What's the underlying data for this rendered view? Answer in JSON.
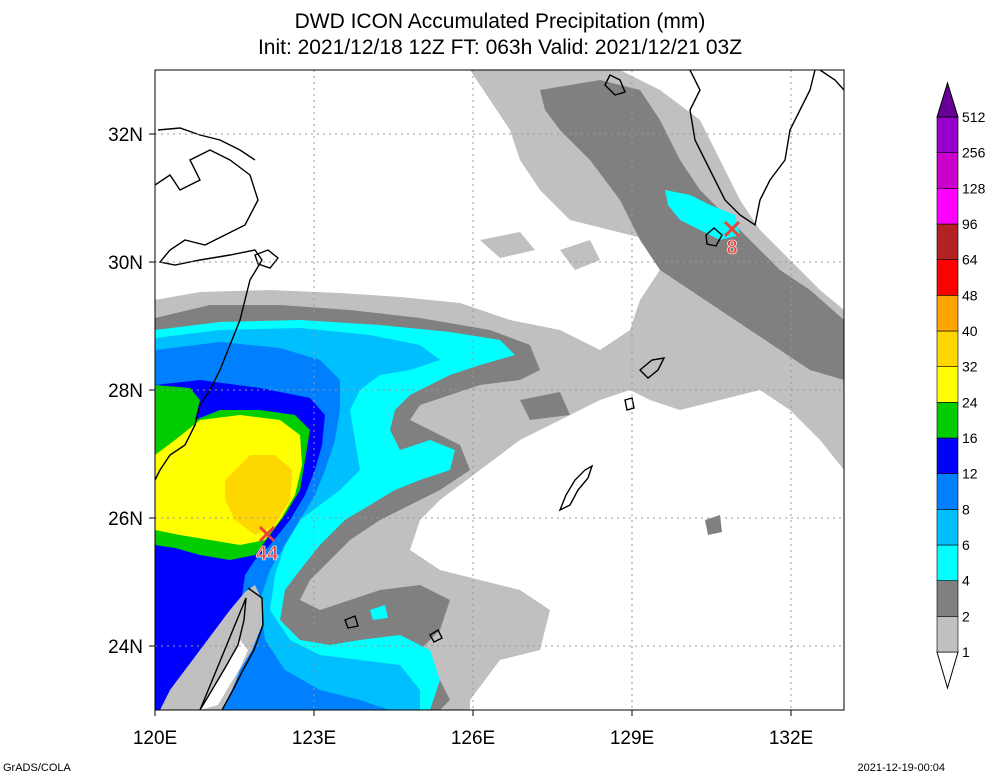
{
  "title": {
    "line1": "DWD ICON Accumulated Precipitation (mm)",
    "line2": "Init: 2021/12/18 12Z  FT: 063h  Valid: 2021/12/21 03Z"
  },
  "axes": {
    "lon_labels": [
      "120E",
      "123E",
      "126E",
      "129E",
      "132E"
    ],
    "lat_labels": [
      "32N",
      "30N",
      "28N",
      "26N",
      "24N"
    ],
    "lon_range": [
      120,
      133
    ],
    "lat_range": [
      23,
      33
    ],
    "grid": "dotted"
  },
  "colorbar": {
    "levels": [
      "1",
      "2",
      "4",
      "6",
      "8",
      "12",
      "16",
      "24",
      "32",
      "40",
      "48",
      "64",
      "96",
      "128",
      "256",
      "512"
    ],
    "colors": [
      "#ffffff",
      "#c0c0c0",
      "#808080",
      "#00ffff",
      "#00bfff",
      "#0080ff",
      "#0000ff",
      "#00cc00",
      "#ffff00",
      "#ffd700",
      "#ffa500",
      "#ff0000",
      "#b22222",
      "#ff00ff",
      "#cc00cc",
      "#9900cc",
      "#660099"
    ]
  },
  "markers": [
    {
      "name": "max-marker-south",
      "lon": 122.1,
      "lat": 25.75,
      "value": "44"
    },
    {
      "name": "max-marker-north",
      "lon": 130.9,
      "lat": 30.5,
      "value": "8"
    }
  ],
  "footer": {
    "left": "GrADS/COLA",
    "right": "2021-12-19-00:04"
  }
}
